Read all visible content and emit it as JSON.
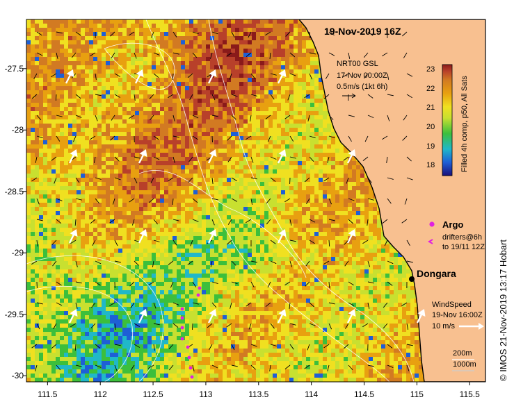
{
  "map": {
    "title": "19-Nov-2019 16Z",
    "region": "Dongara",
    "lon_ticks": [
      "111.5",
      "112",
      "112.5",
      "113",
      "113.5",
      "114",
      "114.5",
      "115",
      "115.5"
    ],
    "lon_values": [
      111.5,
      112,
      112.5,
      113,
      113.5,
      114,
      114.5,
      115,
      115.5
    ],
    "lat_ticks": [
      "-27.5",
      "-28",
      "-28.5",
      "-29",
      "-29.5",
      "-30"
    ],
    "lat_values": [
      -27.5,
      -28,
      -28.5,
      -29,
      -29.5,
      -30
    ],
    "lon_range": [
      111.3,
      115.65
    ],
    "lat_range": [
      -30.05,
      -27.1
    ],
    "colors": {
      "land": "#f8c090",
      "coast": "#000000",
      "frame": "#000000"
    }
  },
  "current_legend": {
    "line1": "NRT00 GSL",
    "line2": "17-Nov 00:00Z",
    "line3": "0.5m/s (1kt 6h)"
  },
  "colorbar": {
    "label": "Filled 4h comp, p50, All Sats",
    "ticks": [
      "23",
      "22",
      "21",
      "20",
      "19",
      "18"
    ],
    "range": [
      17.5,
      23.3
    ],
    "stops": [
      "#1a0f7a",
      "#1e5fd6",
      "#20b8c8",
      "#3cbf3c",
      "#c8e030",
      "#f0e020",
      "#e8a010",
      "#d27a22",
      "#b8402a",
      "#8a1a1a"
    ]
  },
  "argo_legend": {
    "title": "Argo",
    "line1": "drifters@6h",
    "line2": "to 19/11 12Z",
    "color": "#e020e0"
  },
  "wind_legend": {
    "line1": "WindSpeed",
    "line2": "19-Nov 16:00Z",
    "line3": "10 m/s"
  },
  "contour_legend": {
    "c200": "200m",
    "c1000": "1000m"
  },
  "side_caption": "© IMOS 21-Nov-2019 13:17 Hobart"
}
